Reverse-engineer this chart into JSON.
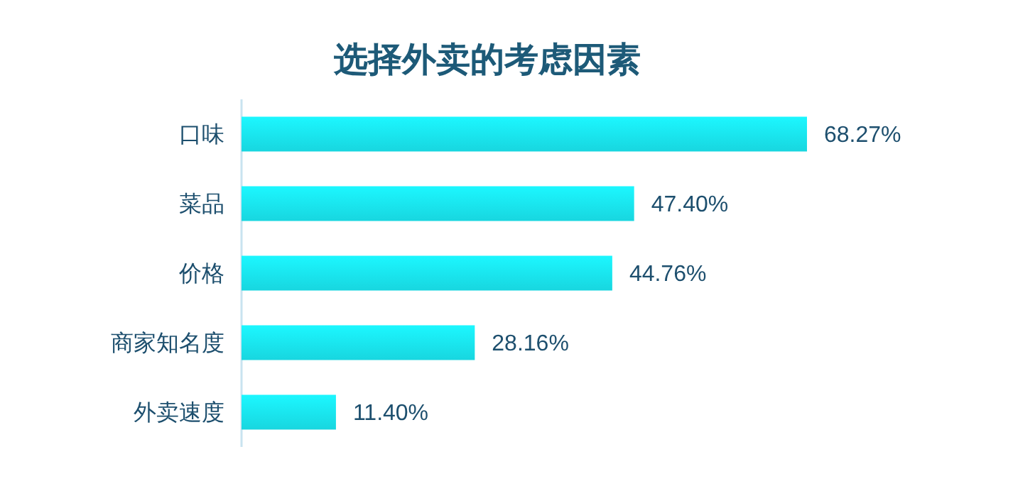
{
  "chart_data": {
    "type": "bar",
    "orientation": "horizontal",
    "title": "选择外卖的考虑因素",
    "categories": [
      "口味",
      "菜品",
      "价格",
      "商家知名度",
      "外卖速度"
    ],
    "values": [
      68.27,
      47.4,
      44.76,
      28.16,
      11.4
    ],
    "value_labels": [
      "68.27%",
      "47.40%",
      "44.76%",
      "28.16%",
      "11.40%"
    ],
    "color": "#18d6df"
  }
}
